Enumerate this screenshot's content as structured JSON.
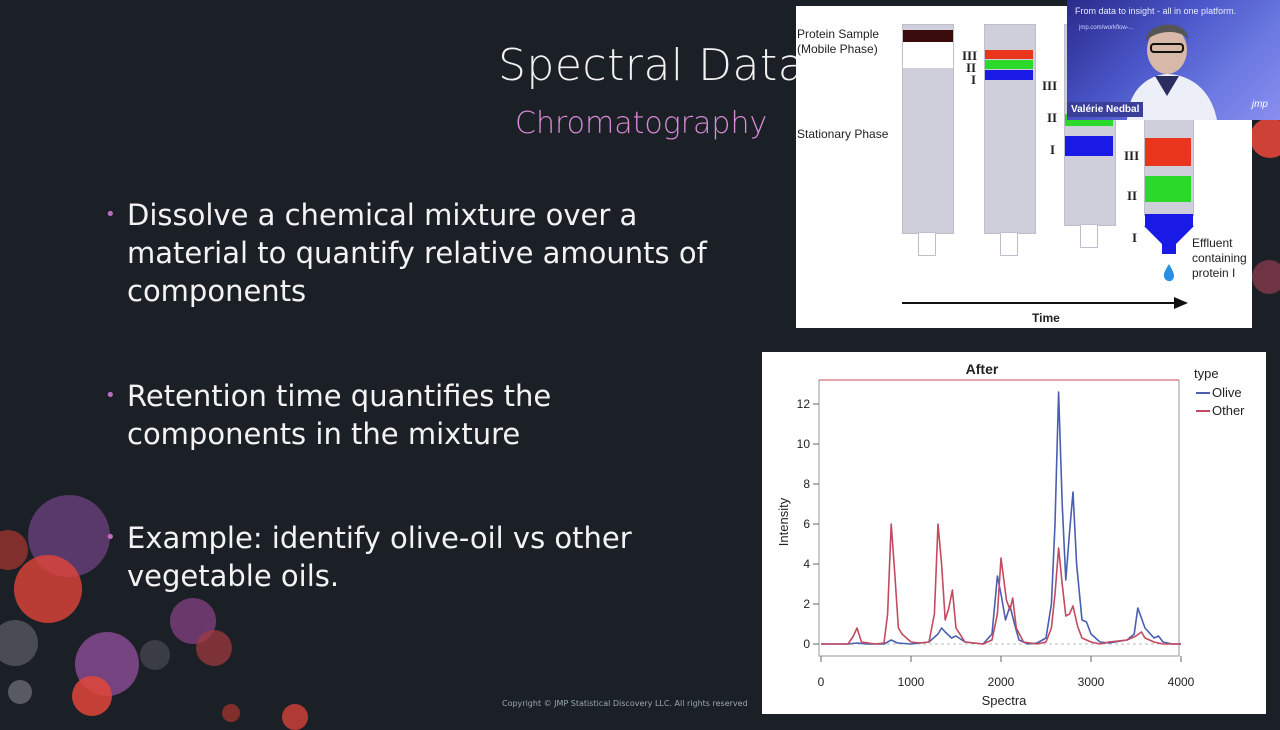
{
  "slide": {
    "title": "Spectral Data",
    "subtitle": "Chromatography",
    "bullets": [
      "Dissolve a chemical mixture over a material to quantify relative amounts of components",
      "Retention time quantifies the components in the mixture",
      "Example: identify olive-oil vs other vegetable oils."
    ],
    "copyright": "Copyright © JMP Statistical Discovery LLC. All rights reserved"
  },
  "diagram": {
    "sample_label": "Protein Sample\n(Mobile Phase)",
    "stationary_label": "Stationary Phase",
    "effluent_label": "Effluent\ncontaining\nprotein I",
    "time_label": "Time",
    "band_labels": [
      "III",
      "II",
      "I"
    ],
    "colors": {
      "red": "#e8351c",
      "green": "#2bd92b",
      "blue": "#1a1ae6",
      "dark": "#3a0c0c"
    }
  },
  "video": {
    "tagline": "From data to insight - all in one platform.",
    "url": "jmp.com/workflow-...",
    "presenter": "Valérie Nedbal",
    "logo": "jmp"
  },
  "chart_data": {
    "type": "line",
    "title": "After",
    "xlabel": "Spectra",
    "ylabel": "Intensity",
    "xlim": [
      0,
      4000
    ],
    "ylim": [
      -0.5,
      13
    ],
    "xticks": [
      0,
      1000,
      2000,
      3000,
      4000
    ],
    "yticks": [
      0,
      2,
      4,
      6,
      8,
      10,
      12
    ],
    "legend_title": "type",
    "legend_position": "right",
    "series": [
      {
        "name": "Olive",
        "color": "#4a5fb0",
        "x": [
          0,
          300,
          400,
          500,
          700,
          780,
          850,
          1000,
          1200,
          1300,
          1340,
          1380,
          1450,
          1500,
          1600,
          1800,
          1900,
          1960,
          2000,
          2050,
          2100,
          2150,
          2200,
          2300,
          2400,
          2500,
          2560,
          2600,
          2640,
          2680,
          2720,
          2760,
          2800,
          2840,
          2900,
          2950,
          3000,
          3100,
          3200,
          3400,
          3480,
          3520,
          3600,
          3700,
          3750,
          3800,
          3900,
          4000
        ],
        "y": [
          0,
          0,
          0.05,
          0,
          0,
          0.2,
          0.05,
          0,
          0.1,
          0.5,
          0.8,
          0.6,
          0.3,
          0.4,
          0.1,
          0,
          0.5,
          3.4,
          2.5,
          1.2,
          1.9,
          1.0,
          0.2,
          0,
          0.05,
          0.3,
          2.0,
          6.0,
          12.6,
          7.0,
          3.2,
          5.5,
          7.6,
          4.0,
          1.2,
          1.1,
          0.5,
          0.1,
          0.05,
          0.2,
          0.5,
          1.8,
          0.8,
          0.3,
          0.4,
          0.1,
          0,
          0
        ]
      },
      {
        "name": "Other",
        "color": "#c44a5f",
        "x": [
          0,
          300,
          360,
          400,
          450,
          600,
          700,
          740,
          780,
          820,
          860,
          900,
          1000,
          1100,
          1200,
          1260,
          1300,
          1340,
          1380,
          1420,
          1460,
          1500,
          1600,
          1800,
          1900,
          1960,
          2000,
          2060,
          2100,
          2130,
          2170,
          2250,
          2400,
          2500,
          2560,
          2600,
          2640,
          2680,
          2720,
          2760,
          2800,
          2850,
          2900,
          3000,
          3100,
          3200,
          3400,
          3500,
          3560,
          3600,
          3700,
          3800,
          4000
        ],
        "y": [
          0,
          0,
          0.4,
          0.8,
          0.1,
          0,
          0.05,
          1.5,
          6.0,
          3.5,
          0.8,
          0.5,
          0.1,
          0.05,
          0.1,
          1.5,
          6.0,
          4.0,
          1.2,
          1.8,
          2.7,
          0.8,
          0.1,
          0,
          0.2,
          1.5,
          4.3,
          2.2,
          1.7,
          2.3,
          0.8,
          0.1,
          0,
          0.1,
          0.8,
          2.5,
          4.8,
          3.0,
          1.4,
          1.5,
          1.9,
          0.9,
          0.3,
          0.1,
          0,
          0.1,
          0.2,
          0.4,
          0.6,
          0.3,
          0.1,
          0,
          0
        ]
      }
    ]
  }
}
